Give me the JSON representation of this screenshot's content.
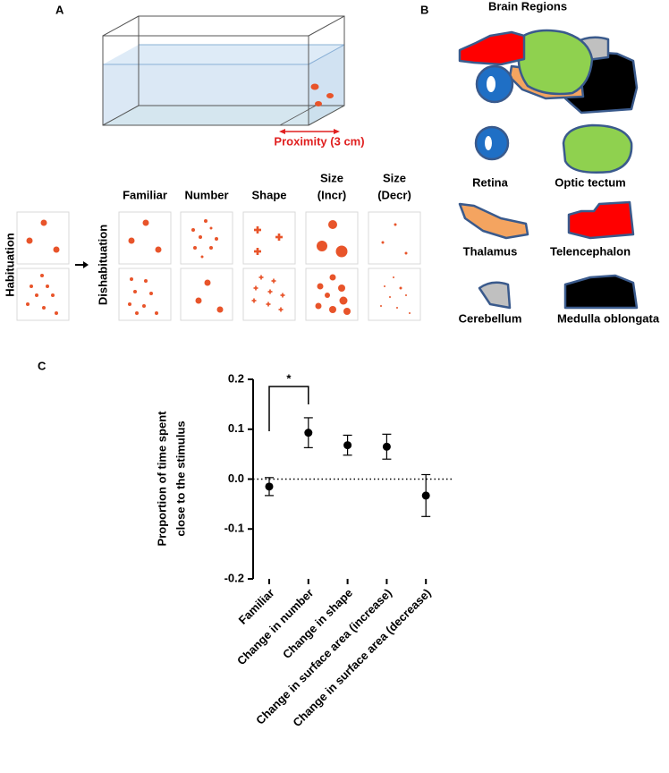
{
  "panels": {
    "a": "A",
    "b": "B",
    "c": "C"
  },
  "panel_a": {
    "proximity_label": "Proximity (3 cm)",
    "habituation": "Habituation",
    "dishabituation": "Dishabituation",
    "columns": [
      [
        "Familiar"
      ],
      [
        "Number"
      ],
      [
        "Shape"
      ],
      [
        "Size",
        "(Incr)"
      ],
      [
        "Size",
        "(Decr)"
      ]
    ]
  },
  "panel_b": {
    "title": "Brain Regions",
    "regions": [
      "Retina",
      "Optic tectum",
      "Thalamus",
      "Telencephalon",
      "Cerebellum",
      "Medulla oblongata"
    ]
  },
  "chart_data": {
    "type": "dot",
    "ylabel": [
      "Proportion of time spent",
      "close to the stimulus"
    ],
    "categories": [
      "Familiar",
      "Change in number",
      "Change in shape",
      "Change in surface area (increase)",
      "Change in surface area (decrease)"
    ],
    "values": [
      -0.015,
      0.093,
      0.068,
      0.065,
      -0.033
    ],
    "errors": [
      0.018,
      0.03,
      0.02,
      0.025,
      0.042
    ],
    "color": "#000000",
    "ylim": [
      -0.2,
      0.2
    ],
    "yticks": [
      -0.2,
      -0.1,
      {
        "value": 0,
        "label": "0.0"
      },
      0.1,
      0.2
    ],
    "reference_line": 0,
    "significance": {
      "label": "*"
    }
  }
}
